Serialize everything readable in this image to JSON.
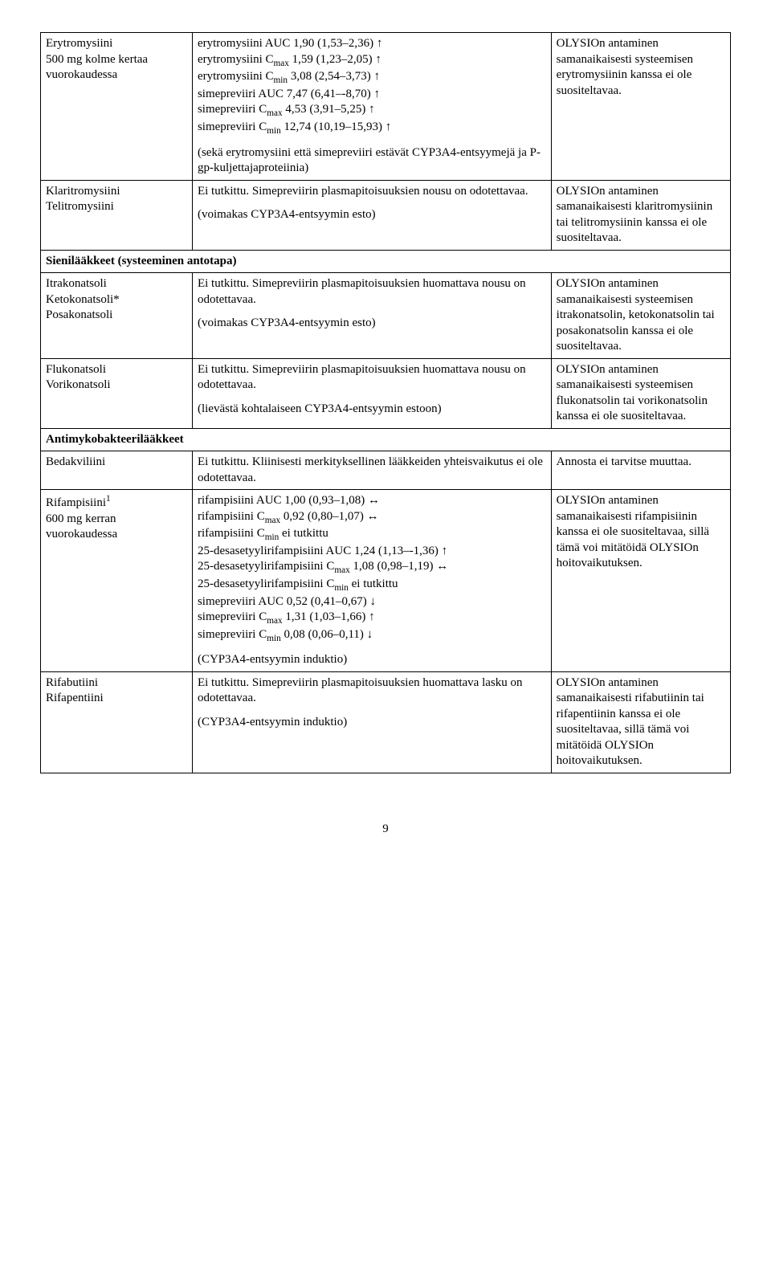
{
  "rows": [
    {
      "c1_html": "Erytromysiini<br>500 mg kolme kertaa vuorokaudessa",
      "c2_paras": [
        "erytromysiini AUC 1,90 (1,53–2,36) ↑<br>erytromysiini C<sub>max</sub> 1,59 (1,23–2,05) ↑<br>erytromysiini C<sub>min</sub> 3,08 (2,54–3,73) ↑<br>simepreviiri AUC 7,47 (6,41–-8,70) ↑<br>simepreviiri C<sub>max</sub> 4,53 (3,91–5,25) ↑<br>simepreviiri C<sub>min</sub> 12,74 (10,19–15,93) ↑",
        "(sekä erytromysiini että simepreviiri estävät CYP3A4-entsyymejä ja P-gp-kuljettajaproteiinia)"
      ],
      "c3_html": "OLYSIOn antaminen samanaikaisesti systeemisen erytromysiinin kanssa ei ole suositeltavaa."
    },
    {
      "c1_html": "Klaritromysiini<br>Telitromysiini",
      "c2_paras": [
        "Ei tutkittu. Simepreviirin plasmapitoisuuksien nousu on odotettavaa.",
        "(voimakas CYP3A4-entsyymin esto)"
      ],
      "c3_html": "OLYSIOn antaminen samanaikaisesti klaritromysiinin tai telitromysiinin kanssa ei ole suositeltavaa."
    },
    {
      "section": true,
      "label": "Sienilääkkeet (systeeminen antotapa)"
    },
    {
      "c1_html": "Itrakonatsoli<br>Ketokonatsoli*<br>Posakonatsoli",
      "c2_paras": [
        "Ei tutkittu. Simepreviirin plasmapitoisuuksien huomattava nousu on odotettavaa.",
        "(voimakas CYP3A4-entsyymin esto)"
      ],
      "c3_html": "OLYSIOn antaminen samanaikaisesti systeemisen itrakonatsolin, ketokonatsolin tai posakonatsolin kanssa ei ole suositeltavaa."
    },
    {
      "c1_html": "Flukonatsoli<br>Vorikonatsoli",
      "c2_paras": [
        "Ei tutkittu. Simepreviirin plasmapitoisuuksien huomattava nousu on odotettavaa.",
        "(lievästä kohtalaiseen CYP3A4-entsyymin estoon)"
      ],
      "c3_html": "OLYSIOn antaminen samanaikaisesti systeemisen flukonatsolin tai vorikonatsolin kanssa ei ole suositeltavaa."
    },
    {
      "section": true,
      "label": "Antimykobakteerilääkkeet"
    },
    {
      "c1_html": "Bedakviliini",
      "c2_paras": [
        "Ei tutkittu. Kliinisesti merkityksellinen lääkkeiden yhteisvaikutus ei ole odotettavaa."
      ],
      "c3_html": "Annosta ei tarvitse muuttaa."
    },
    {
      "c1_html": "Rifampisiini<sup>1</sup><br>600 mg kerran vuorokaudessa",
      "c2_paras": [
        "rifampisiini AUC 1,00 (0,93–1,08) ↔<br>rifampisiini C<sub>max</sub> 0,92 (0,80–1,07) ↔<br>rifampisiini C<sub>min</sub> ei tutkittu<br>25-desasetyylirifampisiini AUC 1,24 (1,13–-1,36) ↑<br>25-desasetyylirifampisiini C<sub>max</sub> 1,08 (0,98–1,19) ↔<br>25-desasetyylirifampisiini C<sub>min</sub> ei tutkittu<br>simepreviiri AUC 0,52 (0,41–0,67) ↓<br>simepreviiri C<sub>max</sub> 1,31 (1,03–1,66) ↑<br>simepreviiri C<sub>min</sub> 0,08 (0,06–0,11) ↓",
        "(CYP3A4-entsyymin induktio)"
      ],
      "c3_html": "OLYSIOn antaminen samanaikaisesti rifampisiinin kanssa ei ole suositeltavaa, sillä tämä voi mitätöidä OLYSIOn hoitovaikutuksen."
    },
    {
      "c1_html": "Rifabutiini<br>Rifapentiini",
      "c2_paras": [
        "Ei tutkittu. Simepreviirin plasmapitoisuuksien huomattava lasku on odotettavaa.",
        "(CYP3A4-entsyymin induktio)"
      ],
      "c3_html": "OLYSIOn antaminen samanaikaisesti rifabutiinin tai rifapentiinin kanssa ei ole suositeltavaa, sillä tämä voi mitätöidä OLYSIOn hoitovaikutuksen."
    }
  ],
  "page_number": "9"
}
